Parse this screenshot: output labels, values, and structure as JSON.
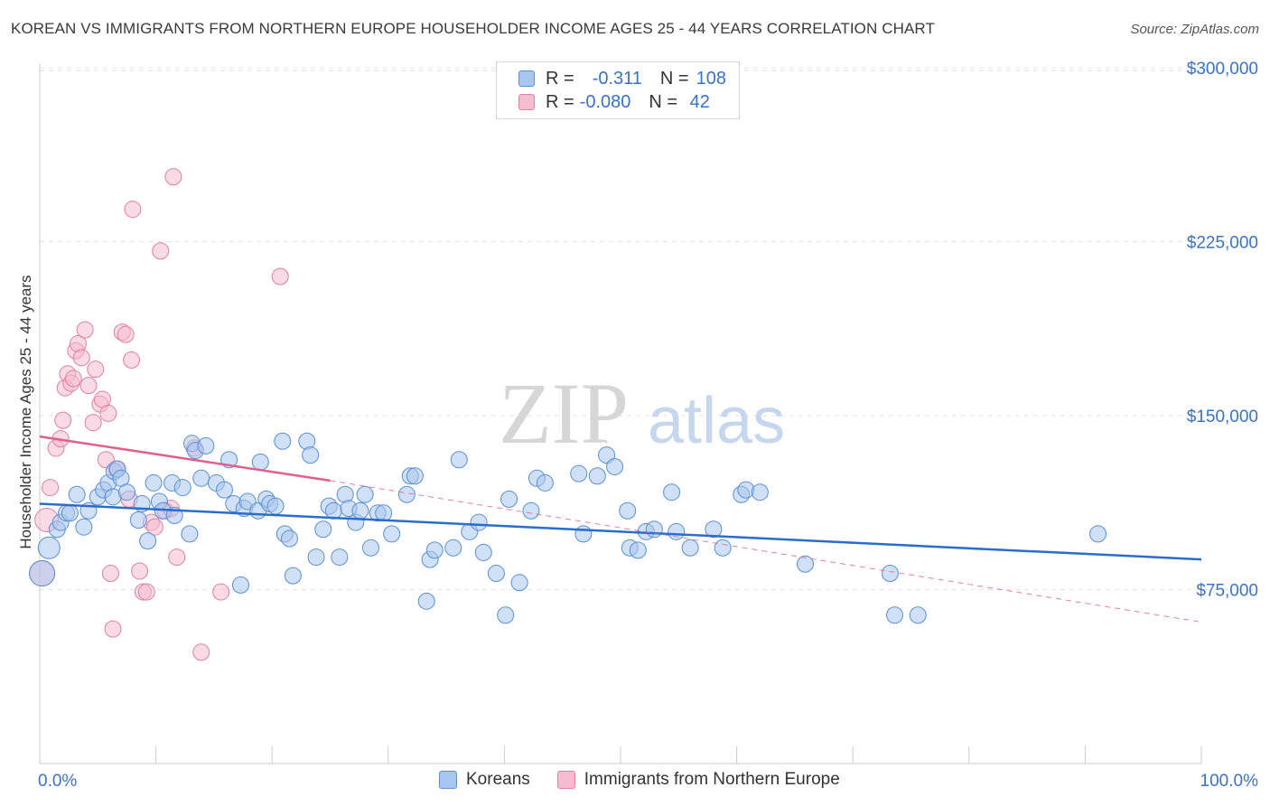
{
  "title": "KOREAN VS IMMIGRANTS FROM NORTHERN EUROPE HOUSEHOLDER INCOME AGES 25 - 44 YEARS CORRELATION CHART",
  "source": "Source: ZipAtlas.com",
  "watermark": {
    "zip": "ZIP",
    "atlas": "atlas"
  },
  "legend": {
    "rows": [
      {
        "r_label": "R =",
        "r_value": "-0.311",
        "n_label": "N =",
        "n_value": "108"
      },
      {
        "r_label": "R =",
        "r_value": "-0.080",
        "n_label": "N =",
        "n_value": " 42"
      }
    ],
    "bottom": [
      "Koreans",
      "Immigrants from Northern Europe"
    ]
  },
  "colors": {
    "koreans_fill": "#a9c6ee",
    "koreans_stroke": "#5b8fd6",
    "koreans_line": "#2a6dcc",
    "europe_fill": "#f6bcd0",
    "europe_stroke": "#e37fa1",
    "europe_line": "#e0608d",
    "axis_text": "#3a72c8",
    "grid": "#e3e3e3"
  },
  "chart_data": {
    "type": "scatter",
    "title": "KOREAN VS IMMIGRANTS FROM NORTHERN EUROPE HOUSEHOLDER INCOME AGES 25 - 44 YEARS CORRELATION CHART",
    "xlabel": "",
    "ylabel": "Householder Income Ages 25 - 44 years",
    "xlim": [
      0,
      100
    ],
    "ylim": [
      0,
      310000
    ],
    "x_tick_labels": [
      "0.0%",
      "100.0%"
    ],
    "y_ticks": [
      75000,
      150000,
      225000,
      300000
    ],
    "y_tick_labels": [
      "$75,000",
      "$150,000",
      "$225,000",
      "$300,000"
    ],
    "series": [
      {
        "name": "Koreans",
        "trend": {
          "x": [
            0,
            100
          ],
          "y": [
            112000,
            88000
          ]
        },
        "points": [
          [
            0.2,
            82000
          ],
          [
            0.8,
            93000
          ],
          [
            1.5,
            101000
          ],
          [
            1.8,
            104000
          ],
          [
            2.3,
            108000
          ],
          [
            2.6,
            108000
          ],
          [
            3.2,
            116000
          ],
          [
            3.8,
            102000
          ],
          [
            4.2,
            109000
          ],
          [
            5.0,
            115000
          ],
          [
            5.5,
            118000
          ],
          [
            5.9,
            121000
          ],
          [
            6.3,
            115000
          ],
          [
            6.4,
            126000
          ],
          [
            6.7,
            127000
          ],
          [
            7.0,
            123000
          ],
          [
            7.5,
            117000
          ],
          [
            8.5,
            105000
          ],
          [
            8.8,
            112000
          ],
          [
            9.3,
            96000
          ],
          [
            9.8,
            121000
          ],
          [
            10.3,
            113000
          ],
          [
            10.6,
            109000
          ],
          [
            11.4,
            121000
          ],
          [
            11.6,
            107000
          ],
          [
            12.3,
            119000
          ],
          [
            12.9,
            99000
          ],
          [
            13.1,
            138000
          ],
          [
            13.4,
            135000
          ],
          [
            13.9,
            123000
          ],
          [
            14.3,
            137000
          ],
          [
            15.2,
            121000
          ],
          [
            15.9,
            118000
          ],
          [
            16.3,
            131000
          ],
          [
            16.7,
            112000
          ],
          [
            17.3,
            77000
          ],
          [
            17.6,
            110000
          ],
          [
            17.9,
            113000
          ],
          [
            18.8,
            109000
          ],
          [
            19.0,
            130000
          ],
          [
            19.5,
            114000
          ],
          [
            19.8,
            112000
          ],
          [
            20.3,
            111000
          ],
          [
            20.9,
            139000
          ],
          [
            21.1,
            99000
          ],
          [
            21.5,
            97000
          ],
          [
            21.8,
            81000
          ],
          [
            23.0,
            139000
          ],
          [
            23.3,
            133000
          ],
          [
            23.8,
            89000
          ],
          [
            24.4,
            101000
          ],
          [
            24.9,
            111000
          ],
          [
            25.3,
            109000
          ],
          [
            25.8,
            89000
          ],
          [
            26.3,
            116000
          ],
          [
            26.6,
            110000
          ],
          [
            27.2,
            104000
          ],
          [
            27.6,
            109000
          ],
          [
            28.0,
            116000
          ],
          [
            28.5,
            93000
          ],
          [
            29.1,
            108000
          ],
          [
            29.6,
            108000
          ],
          [
            30.3,
            99000
          ],
          [
            31.6,
            116000
          ],
          [
            31.9,
            124000
          ],
          [
            32.3,
            124000
          ],
          [
            33.3,
            70000
          ],
          [
            33.6,
            88000
          ],
          [
            34.0,
            92000
          ],
          [
            35.6,
            93000
          ],
          [
            36.1,
            131000
          ],
          [
            37.0,
            100000
          ],
          [
            37.8,
            104000
          ],
          [
            38.2,
            91000
          ],
          [
            39.3,
            82000
          ],
          [
            40.1,
            64000
          ],
          [
            40.4,
            114000
          ],
          [
            41.3,
            78000
          ],
          [
            42.3,
            109000
          ],
          [
            42.8,
            123000
          ],
          [
            43.5,
            121000
          ],
          [
            46.4,
            125000
          ],
          [
            46.8,
            99000
          ],
          [
            48.0,
            124000
          ],
          [
            48.8,
            133000
          ],
          [
            49.5,
            128000
          ],
          [
            50.6,
            109000
          ],
          [
            50.8,
            93000
          ],
          [
            51.5,
            92000
          ],
          [
            52.2,
            100000
          ],
          [
            52.9,
            101000
          ],
          [
            54.4,
            117000
          ],
          [
            54.8,
            100000
          ],
          [
            56.0,
            93000
          ],
          [
            58.0,
            101000
          ],
          [
            58.8,
            93000
          ],
          [
            60.4,
            116000
          ],
          [
            60.8,
            118000
          ],
          [
            62.0,
            117000
          ],
          [
            65.9,
            86000
          ],
          [
            73.2,
            82000
          ],
          [
            73.6,
            64000
          ],
          [
            75.6,
            64000
          ],
          [
            91.1,
            99000
          ]
        ]
      },
      {
        "name": "Immigrants from Northern Europe",
        "trend": {
          "x": [
            0,
            25
          ],
          "y": [
            141000,
            122000
          ]
        },
        "dashed_trend": {
          "x": [
            25,
            100
          ],
          "y": [
            122000,
            61000
          ]
        },
        "points": [
          [
            0.2,
            82000
          ],
          [
            0.6,
            105000
          ],
          [
            0.9,
            119000
          ],
          [
            1.4,
            136000
          ],
          [
            1.8,
            140000
          ],
          [
            2.0,
            148000
          ],
          [
            2.2,
            162000
          ],
          [
            2.4,
            168000
          ],
          [
            2.7,
            164000
          ],
          [
            2.9,
            166000
          ],
          [
            3.1,
            178000
          ],
          [
            3.3,
            181000
          ],
          [
            3.6,
            175000
          ],
          [
            3.9,
            187000
          ],
          [
            4.2,
            163000
          ],
          [
            4.6,
            147000
          ],
          [
            4.8,
            170000
          ],
          [
            5.2,
            155000
          ],
          [
            5.4,
            157000
          ],
          [
            5.7,
            131000
          ],
          [
            5.9,
            151000
          ],
          [
            6.1,
            82000
          ],
          [
            6.3,
            58000
          ],
          [
            6.6,
            127000
          ],
          [
            7.1,
            186000
          ],
          [
            7.4,
            185000
          ],
          [
            7.7,
            114000
          ],
          [
            7.9,
            174000
          ],
          [
            8.0,
            239000
          ],
          [
            8.6,
            83000
          ],
          [
            8.9,
            74000
          ],
          [
            9.2,
            74000
          ],
          [
            9.6,
            104000
          ],
          [
            9.9,
            102000
          ],
          [
            10.4,
            221000
          ],
          [
            10.8,
            109000
          ],
          [
            11.3,
            110000
          ],
          [
            11.5,
            253000
          ],
          [
            11.8,
            89000
          ],
          [
            13.3,
            136000
          ],
          [
            13.9,
            48000
          ],
          [
            15.6,
            74000
          ],
          [
            20.7,
            210000
          ]
        ]
      }
    ]
  }
}
